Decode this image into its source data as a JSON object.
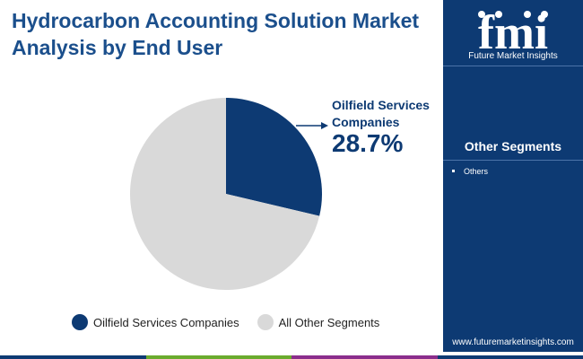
{
  "title": "Hydrocarbon Accounting Solution Market Analysis by End User",
  "brand": {
    "logo_text": "fmi",
    "name": "Future Market Insights",
    "website": "www.futuremarketinsights.com"
  },
  "sidebar": {
    "heading": "Other Segments",
    "items": [
      "Others"
    ]
  },
  "colors": {
    "primary": "#0d3a73",
    "secondary": "#d9d9d9",
    "title": "#1b4f8c",
    "bar": [
      "#0d3a73",
      "#6aab2e",
      "#8b2e8c",
      "#0d3a73"
    ]
  },
  "chart_data": {
    "type": "pie",
    "slices": [
      {
        "label": "Oilfield Services Companies",
        "value": 28.7,
        "display": "28.7%",
        "color": "#0d3a73"
      },
      {
        "label": "All Other Segments",
        "value": 71.3,
        "color": "#d9d9d9"
      }
    ],
    "legend_position": "bottom",
    "callout": {
      "label": "Oilfield Services Companies",
      "value": "28.7%"
    }
  }
}
